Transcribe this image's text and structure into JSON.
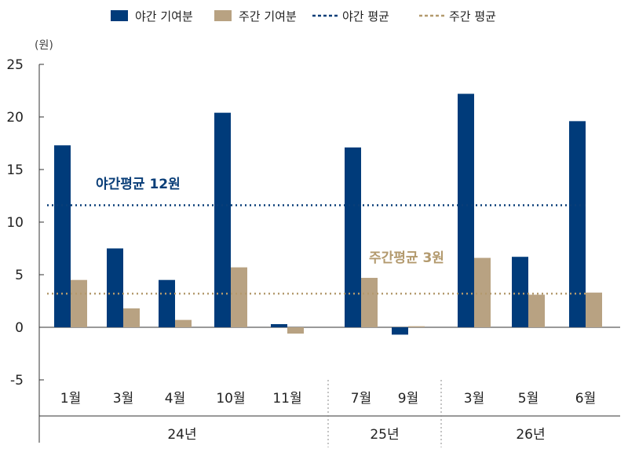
{
  "chart_data": {
    "type": "bar",
    "unit": "(원)",
    "categories": [
      "1월",
      "3월",
      "4월",
      "10월",
      "11월",
      "7월",
      "9월",
      "3월",
      "5월",
      "6월"
    ],
    "groups": [
      {
        "label": "24년",
        "count": 5
      },
      {
        "label": "25년",
        "count": 2
      },
      {
        "label": "26년",
        "count": 3
      }
    ],
    "series": [
      {
        "name": "야간 기여분",
        "color": "#003b7a",
        "values": [
          17.3,
          7.5,
          4.5,
          20.4,
          0.3,
          17.1,
          -0.7,
          22.2,
          6.7,
          19.6
        ]
      },
      {
        "name": "주간 기여분",
        "color": "#b8a282",
        "values": [
          4.5,
          1.8,
          0.7,
          5.7,
          -0.6,
          4.7,
          0.1,
          6.6,
          3.1,
          3.3
        ]
      }
    ],
    "reference_lines": [
      {
        "name": "야간 평균",
        "value": 11.6,
        "color": "#0a3e78",
        "label": "야간평균 12원"
      },
      {
        "name": "주간 평균",
        "value": 3.2,
        "color": "#b39a6e",
        "label": "주간평균 3원"
      }
    ],
    "ylim": [
      -5,
      25
    ],
    "yticks": [
      25,
      20,
      15,
      10,
      5,
      0,
      -5
    ],
    "legend_position": "top",
    "grid": false
  }
}
